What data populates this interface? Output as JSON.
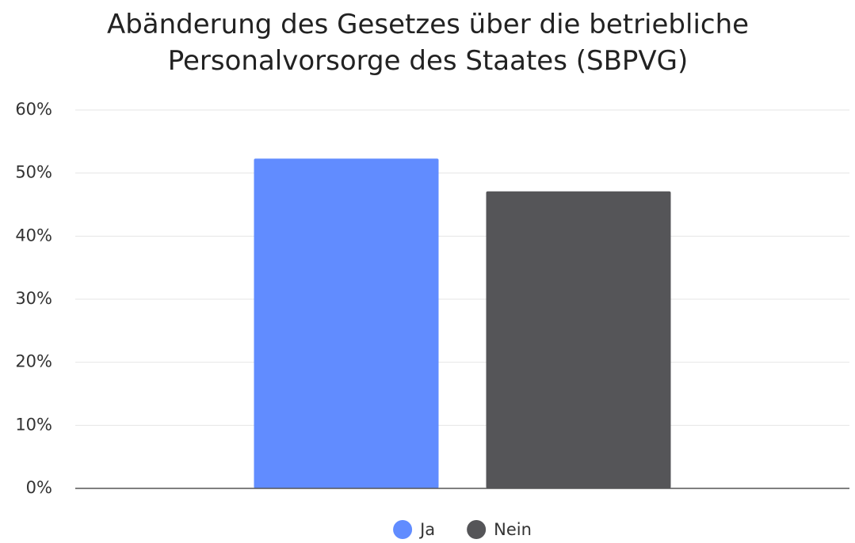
{
  "chart_data": {
    "type": "bar",
    "title": "Abänderung des Gesetzes über die betriebliche Personalvorsorge des Staates (SBPVG)",
    "categories": [
      null
    ],
    "series": [
      {
        "name": "Ja",
        "color": "#618cff",
        "values": [
          52.3
        ]
      },
      {
        "name": "Nein",
        "color": "#555558",
        "values": [
          47.1
        ]
      }
    ],
    "ylim": [
      0,
      60
    ],
    "yticks": [
      {
        "value": 0,
        "label": "0%"
      },
      {
        "value": 10,
        "label": "10%"
      },
      {
        "value": 20,
        "label": "20%"
      },
      {
        "value": 30,
        "label": "30%"
      },
      {
        "value": 40,
        "label": "40%"
      },
      {
        "value": 50,
        "label": "50%"
      },
      {
        "value": 60,
        "label": "60%"
      }
    ],
    "grid": true,
    "legend": "bottom"
  }
}
